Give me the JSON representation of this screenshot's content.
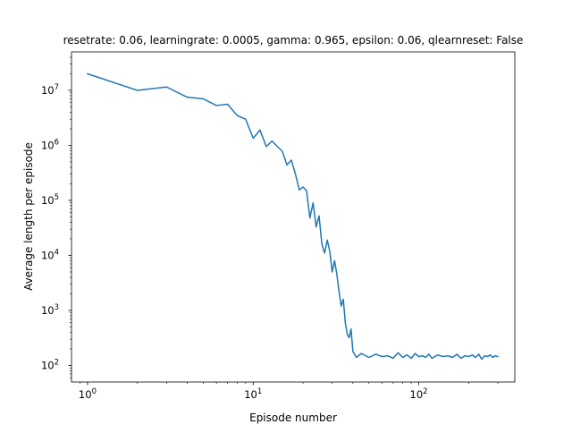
{
  "chart_data": {
    "type": "line",
    "title": "resetrate: 0.06, learningrate: 0.0005, gamma: 0.965, epsilon: 0.06, qlearnreset: False",
    "xlabel": "Episode number",
    "ylabel": "Average length per episode",
    "xscale": "log",
    "yscale": "log",
    "xlim": [
      0.8,
      380
    ],
    "ylim": [
      50,
      50000000
    ],
    "grid": false,
    "line_color": "#1f77b4",
    "x_ticks": [
      {
        "value": 1,
        "base": "10",
        "exp": "0"
      },
      {
        "value": 10,
        "base": "10",
        "exp": "1"
      },
      {
        "value": 100,
        "base": "10",
        "exp": "2"
      }
    ],
    "y_ticks": [
      {
        "value": 100,
        "base": "10",
        "exp": "2"
      },
      {
        "value": 1000,
        "base": "10",
        "exp": "3"
      },
      {
        "value": 10000,
        "base": "10",
        "exp": "4"
      },
      {
        "value": 100000,
        "base": "10",
        "exp": "5"
      },
      {
        "value": 1000000,
        "base": "10",
        "exp": "6"
      },
      {
        "value": 10000000,
        "base": "10",
        "exp": "7"
      }
    ],
    "series": [
      {
        "x": [
          1,
          2,
          3,
          4,
          5,
          6,
          7,
          8,
          9,
          10,
          11,
          12,
          13,
          14,
          15,
          16,
          17,
          18,
          19,
          20,
          21,
          22,
          23,
          24,
          25,
          26,
          27,
          28,
          29,
          30,
          31,
          32,
          33,
          34,
          35,
          36,
          37,
          38,
          39,
          40,
          42,
          45,
          50,
          55,
          60,
          65,
          70,
          75,
          80,
          85,
          90,
          95,
          100,
          105,
          110,
          115,
          120,
          130,
          140,
          150,
          160,
          170,
          180,
          190,
          200,
          210,
          220,
          230,
          240,
          250,
          260,
          270,
          280,
          290,
          300
        ],
        "y": [
          20000000,
          10000000,
          11500000,
          7500000,
          7000000,
          5300000,
          5600000,
          3500000,
          3000000,
          1350000,
          1900000,
          950000,
          1200000,
          950000,
          780000,
          440000,
          540000,
          300000,
          155000,
          175000,
          150000,
          48000,
          90000,
          33000,
          52000,
          16000,
          11000,
          19000,
          12000,
          5000,
          8000,
          4600,
          2200,
          1200,
          1600,
          600,
          370,
          320,
          460,
          180,
          140,
          165,
          140,
          160,
          145,
          150,
          135,
          170,
          140,
          155,
          135,
          165,
          145,
          150,
          140,
          160,
          135,
          155,
          145,
          150,
          140,
          160,
          135,
          150,
          145,
          155,
          140,
          160,
          130,
          150,
          145,
          155,
          140,
          150,
          145
        ]
      }
    ]
  }
}
